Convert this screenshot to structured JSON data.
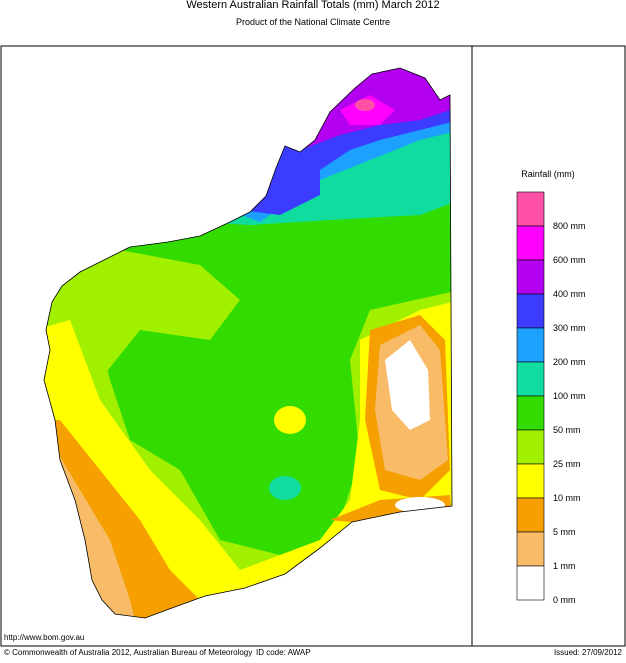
{
  "header": {
    "title": "Western Australian Rainfall Totals (mm) March 2012",
    "subtitle": "Product of the National Climate Centre"
  },
  "legend": {
    "title": "Rainfall (mm)",
    "items": [
      {
        "label": "800 mm",
        "color": "#ff50a8"
      },
      {
        "label": "600 mm",
        "color": "#ff00ff"
      },
      {
        "label": "400 mm",
        "color": "#b400f0"
      },
      {
        "label": "300 mm",
        "color": "#3c3cff"
      },
      {
        "label": "200 mm",
        "color": "#1ea0ff"
      },
      {
        "label": "100 mm",
        "color": "#10dca0"
      },
      {
        "label": "50 mm",
        "color": "#32dc00"
      },
      {
        "label": "25 mm",
        "color": "#a0f000"
      },
      {
        "label": "10 mm",
        "color": "#ffff00"
      },
      {
        "label": "5 mm",
        "color": "#f5a000"
      },
      {
        "label": "1 mm",
        "color": "#f8bc68"
      },
      {
        "label": "0 mm",
        "color": "#ffffff"
      }
    ]
  },
  "footer": {
    "url": "http://www.bom.gov.au",
    "copyright": "© Commonwealth of Australia 2012, Australian Bureau of Meteorology",
    "id_code": "ID code: AWAP",
    "issued": "Issued: 27/09/2012"
  }
}
